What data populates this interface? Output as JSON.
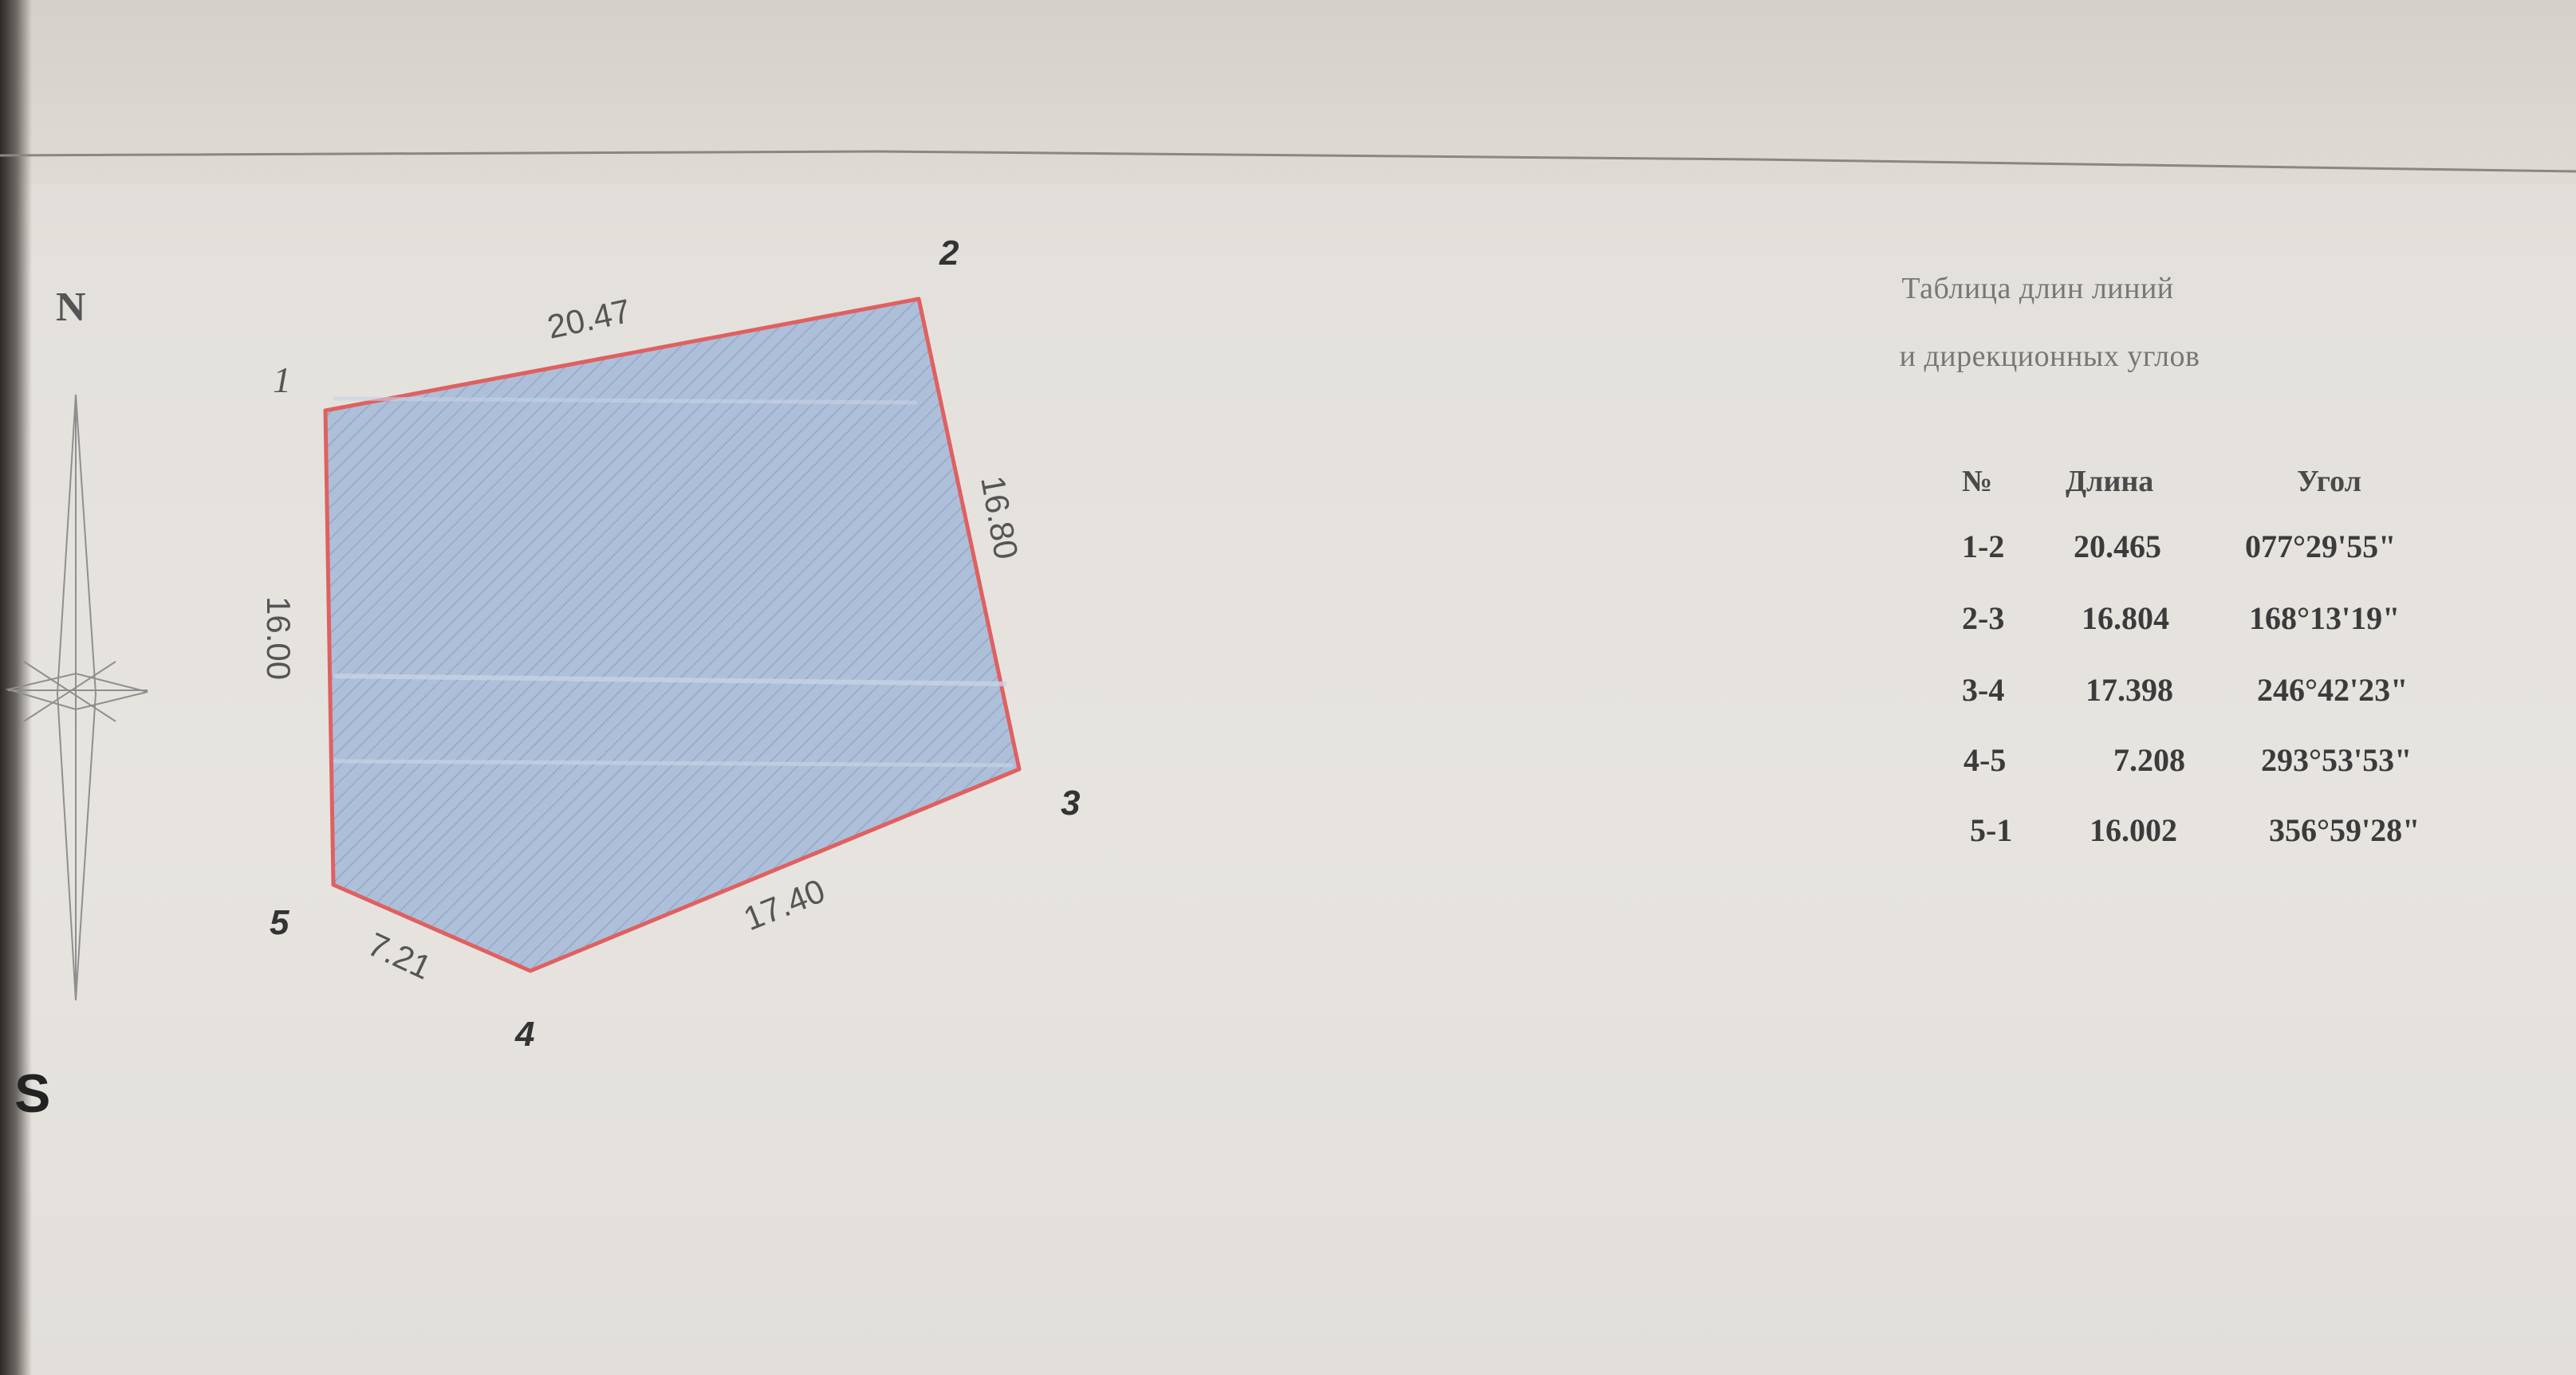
{
  "drawing": {
    "north_label": "N",
    "south_label": "S",
    "points": [
      {
        "number": "1",
        "label": "1"
      },
      {
        "number": "2",
        "label": "2"
      },
      {
        "number": "3",
        "label": "3"
      },
      {
        "number": "4",
        "label": "4"
      },
      {
        "number": "5",
        "label": "5"
      }
    ],
    "edges": [
      {
        "segment": "1-2",
        "label": "20.47"
      },
      {
        "segment": "2-3",
        "label": "16.80"
      },
      {
        "segment": "3-4",
        "label": "17.40"
      },
      {
        "segment": "4-5",
        "label": "7.21"
      },
      {
        "segment": "5-1",
        "label": "16.00"
      }
    ],
    "colors": {
      "fill": "#aebfd9",
      "boundary": "#e06060",
      "hatch": "#8da2c4"
    }
  },
  "table": {
    "title_line1": "Таблица длин линий",
    "title_line2": "и дирекционных углов",
    "headers": {
      "num": "№",
      "length": "Длина",
      "angle": "Угол"
    },
    "rows": [
      {
        "num": "1-2",
        "length": "20.465",
        "angle": "077°29'55\""
      },
      {
        "num": "2-3",
        "length": "16.804",
        "angle": "168°13'19\""
      },
      {
        "num": "3-4",
        "length": "17.398",
        "angle": "246°42'23\""
      },
      {
        "num": "4-5",
        "length": "7.208",
        "angle": "293°53'53\""
      },
      {
        "num": "5-1",
        "length": "16.002",
        "angle": "356°59'28\""
      }
    ]
  }
}
